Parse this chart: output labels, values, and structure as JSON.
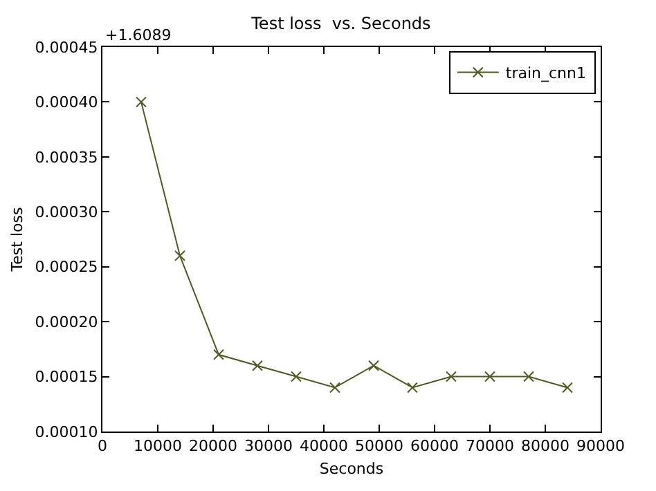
{
  "chart_data": {
    "type": "line",
    "title": "Test loss  vs. Seconds",
    "xlabel": "Seconds",
    "ylabel": "Test loss",
    "x": [
      7000,
      14000,
      21000,
      28000,
      35000,
      42000,
      49000,
      56000,
      63000,
      70000,
      77000,
      84000
    ],
    "series": [
      {
        "name": "train_cnn1",
        "color": "#4f5a23",
        "values": [
          0.0004,
          0.00026,
          0.00017,
          0.00016,
          0.00015,
          0.00014,
          0.00016,
          0.00014,
          0.00015,
          0.00015,
          0.00015,
          0.00014
        ]
      }
    ],
    "xlim": [
      0,
      90000
    ],
    "xticks": [
      0,
      10000,
      20000,
      30000,
      40000,
      50000,
      60000,
      70000,
      80000,
      90000
    ],
    "ylim": [
      0.0001,
      0.00045
    ],
    "yticks": [
      {
        "value": 0.0001,
        "label": "0.00010"
      },
      {
        "value": 0.00015,
        "label": "0.00015"
      },
      {
        "value": 0.0002,
        "label": "0.00020"
      },
      {
        "value": 0.00025,
        "label": "0.00025"
      },
      {
        "value": 0.0003,
        "label": "0.00030"
      },
      {
        "value": 0.00035,
        "label": "0.00035"
      },
      {
        "value": 0.0004,
        "label": "0.00040"
      },
      {
        "value": 0.00045,
        "label": "0.00045"
      }
    ],
    "annotations": [
      "+1.6089"
    ],
    "grid": false,
    "legend": "top right",
    "marker": "cross",
    "line_style": "solid"
  }
}
